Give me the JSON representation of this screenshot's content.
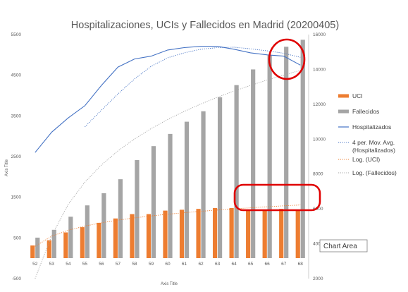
{
  "chart_data": {
    "type": "bar",
    "title": "Hospitalizaciones, UCIs y Fallecidos en Madrid (20200405)",
    "xlabel": "Axis Title",
    "ylabel": "Axis Title",
    "categories": [
      "52",
      "53",
      "54",
      "55",
      "56",
      "57",
      "58",
      "59",
      "60",
      "61",
      "62",
      "63",
      "64",
      "65",
      "66",
      "67",
      "68"
    ],
    "y_left": {
      "ylim": [
        -500,
        5500
      ],
      "ticks": [
        "-500",
        "500",
        "1500",
        "2500",
        "3500",
        "4500",
        "5500"
      ]
    },
    "y_right": {
      "ylim": [
        2000,
        16000
      ],
      "ticks": [
        "2000",
        "4000",
        "6000",
        "8000",
        "10000",
        "12000",
        "14000",
        "16000"
      ]
    },
    "series": [
      {
        "name": "UCI",
        "kind": "bar",
        "axis": "right",
        "color": "#ED7D31",
        "values": [
          3900,
          4200,
          4650,
          4950,
          5200,
          5450,
          5700,
          5700,
          5900,
          5950,
          6000,
          6050,
          6050,
          5950,
          5950,
          6000,
          5950
        ]
      },
      {
        "name": "Fallecidos",
        "kind": "bar",
        "axis": "right",
        "color": "#A5A5A5",
        "values": [
          4350,
          4800,
          5550,
          6200,
          6900,
          7700,
          8800,
          9600,
          10300,
          11000,
          11600,
          12400,
          13100,
          14000,
          14800,
          15300,
          15700
        ]
      },
      {
        "name": "Hospitalizados",
        "kind": "line",
        "axis": "left",
        "color": "#4472C4",
        "values": [
          2600,
          3100,
          3450,
          3750,
          4250,
          4700,
          4900,
          4970,
          5120,
          5180,
          5210,
          5210,
          5140,
          5050,
          5000,
          4970,
          4750
        ]
      },
      {
        "name_lines": [
          "4 per. Mov. Avg.",
          "(Hospitalizados)"
        ],
        "kind": "moving-average",
        "axis": "left",
        "color": "#4472C4",
        "values": [
          null,
          null,
          null,
          3230,
          3640,
          4040,
          4410,
          4720,
          4930,
          5050,
          5140,
          5180,
          5190,
          5150,
          5100,
          5040,
          4940
        ]
      },
      {
        "name": "Log. (UCI)",
        "kind": "trend-log",
        "axis": "right",
        "color": "#ED7D31"
      },
      {
        "name": "Log. (Fallecidos)",
        "kind": "trend-log",
        "axis": "right",
        "color": "#A5A5A5"
      }
    ],
    "grid": false,
    "legend_position": "right"
  },
  "tooltip": {
    "label": "Chart Area"
  }
}
